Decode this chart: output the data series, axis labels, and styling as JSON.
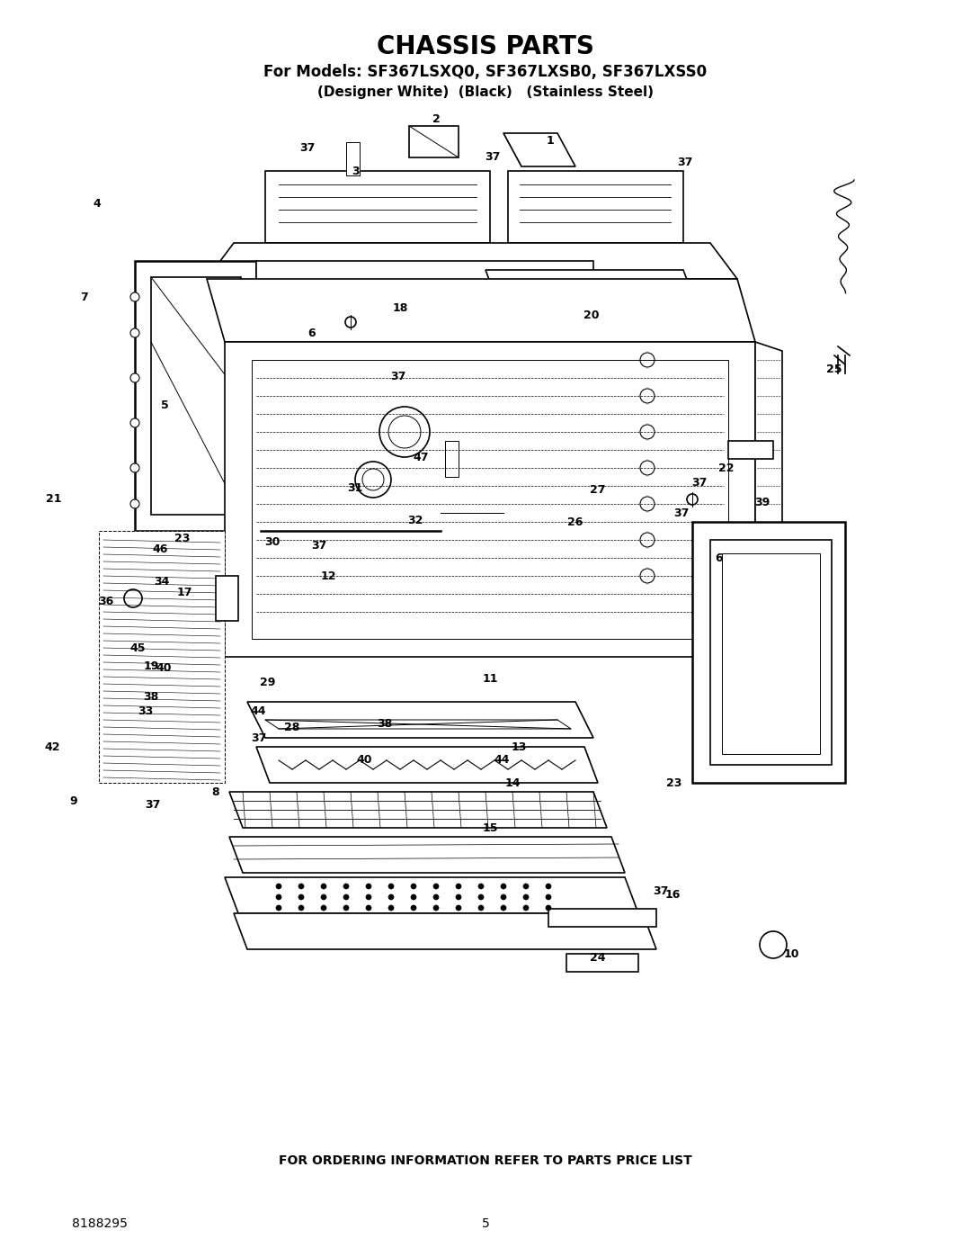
{
  "title": "CHASSIS PARTS",
  "subtitle1": "For Models: SF367LSXQ0, SF367LXSB0, SF367LXSS0",
  "subtitle2": "(Designer White)  (Black)   (Stainless Steel)",
  "footer_text": "FOR ORDERING INFORMATION REFER TO PARTS PRICE LIST",
  "page_number": "5",
  "doc_number": "8188295",
  "bg_color": "#ffffff",
  "text_color": "#000000",
  "fig_width": 10.8,
  "fig_height": 13.97,
  "dpi": 100
}
